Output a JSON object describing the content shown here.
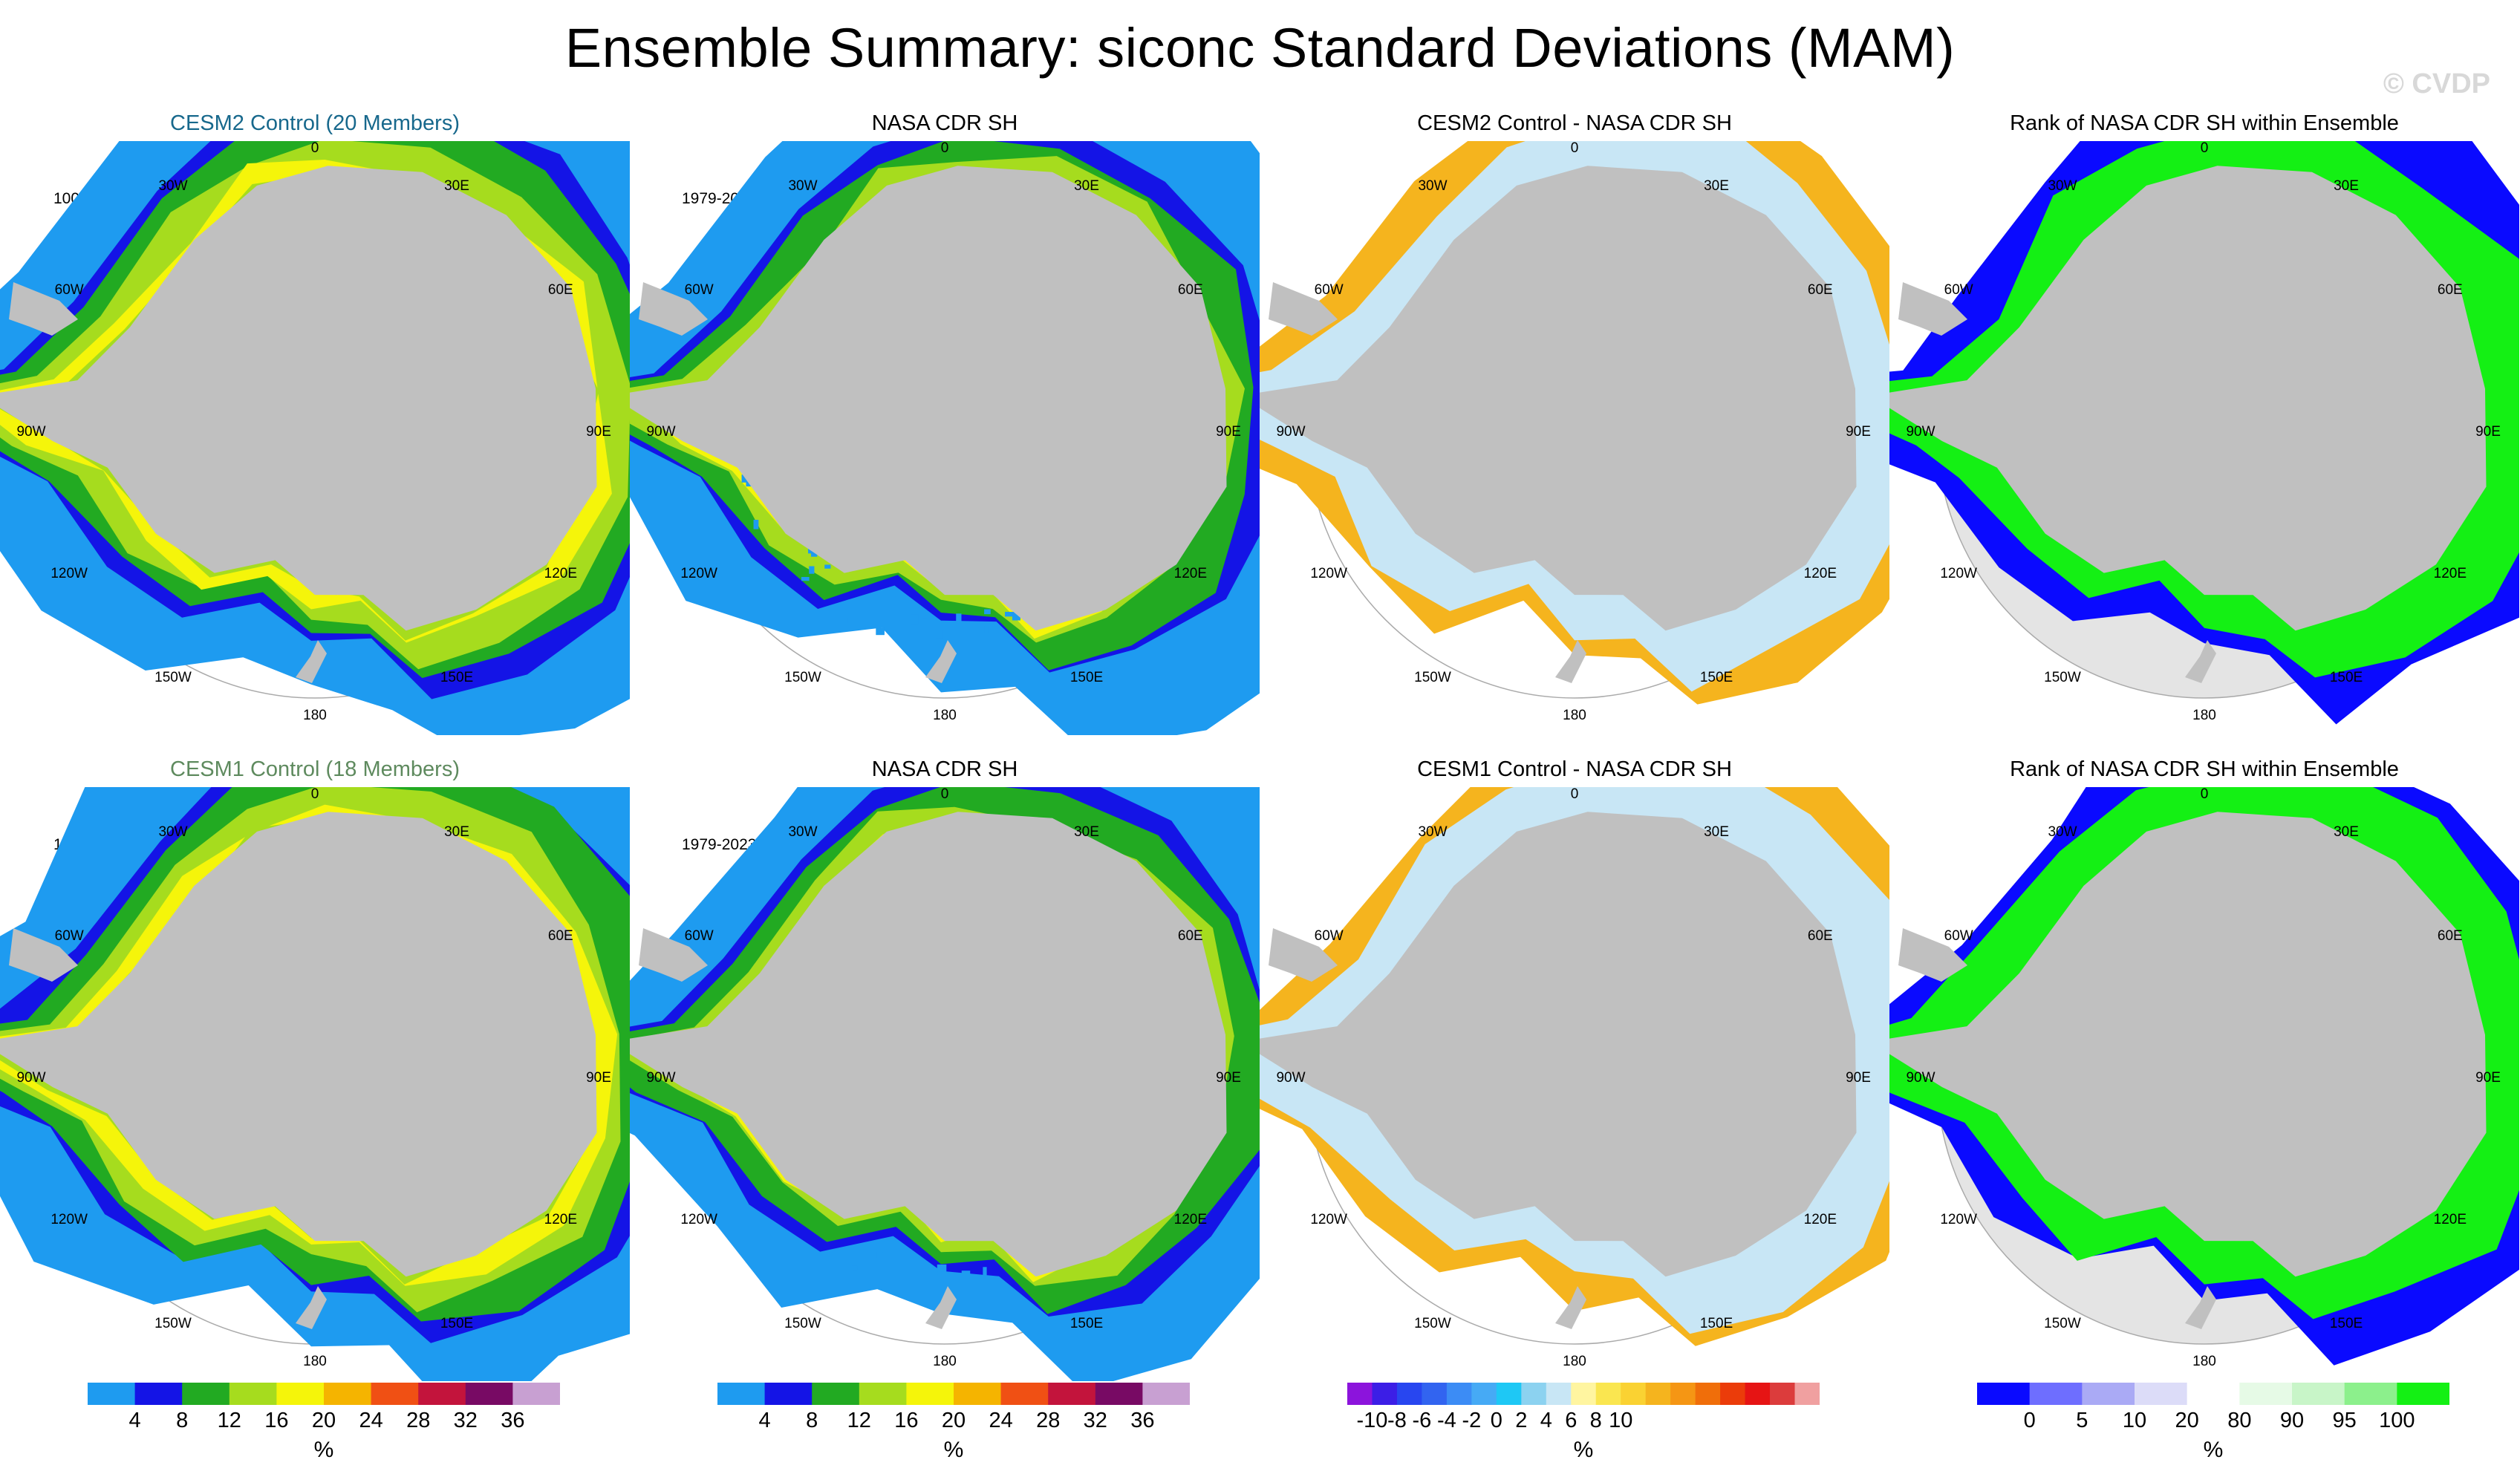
{
  "title": "Ensemble Summary: siconc Standard Deviations (MAM)",
  "watermark": "© CVDP",
  "longitude_labels": [
    "0",
    "30E",
    "60E",
    "90E",
    "120E",
    "150E",
    "180",
    "150W",
    "120W",
    "90W",
    "60W",
    "30W"
  ],
  "colors": {
    "land": "#c0c0c0",
    "ocean": "#ffffff",
    "rank_background": "#e4e4e4",
    "ring": "#aaaaaa",
    "cesm2_title": "#17688c",
    "cesm1_title": "#5e8a5e"
  },
  "rows": [
    {
      "panels": [
        {
          "title": "CESM2 Control (20 Members)",
          "period": "100yrs",
          "kind": "std"
        },
        {
          "title": "NASA CDR SH",
          "period": "1979-2023",
          "kind": "std"
        },
        {
          "title": "CESM2 Control - NASA CDR SH",
          "period": "",
          "kind": "diff"
        },
        {
          "title": "Rank of NASA CDR SH within Ensemble",
          "period": "",
          "kind": "rank"
        }
      ]
    },
    {
      "panels": [
        {
          "title": "CESM1 Control (18 Members)",
          "period": "100yrs",
          "kind": "std"
        },
        {
          "title": "NASA CDR SH",
          "period": "1979-2023",
          "kind": "std"
        },
        {
          "title": "CESM1 Control - NASA CDR SH",
          "period": "",
          "kind": "diff"
        },
        {
          "title": "Rank of NASA CDR SH within Ensemble",
          "period": "",
          "kind": "rank"
        }
      ]
    }
  ],
  "colorbars": [
    {
      "kind": "std",
      "colors": [
        "#1e9bf0",
        "#1414e6",
        "#22aa22",
        "#a6dc1e",
        "#f5f50a",
        "#f5b400",
        "#f05014",
        "#c3143c",
        "#780a64",
        "#c8a0d2"
      ],
      "tick_labels": [
        "4",
        "8",
        "12",
        "16",
        "20",
        "24",
        "28",
        "32",
        "36"
      ],
      "unit": "%"
    },
    {
      "kind": "std",
      "colors": [
        "#1e9bf0",
        "#1414e6",
        "#22aa22",
        "#a6dc1e",
        "#f5f50a",
        "#f5b400",
        "#f05014",
        "#c3143c",
        "#780a64",
        "#c8a0d2"
      ],
      "tick_labels": [
        "4",
        "8",
        "12",
        "16",
        "20",
        "24",
        "28",
        "32",
        "36"
      ],
      "unit": "%"
    },
    {
      "kind": "diff",
      "colors": [
        "#8c14dc",
        "#3c1ee6",
        "#2846f0",
        "#3264f0",
        "#3c8cf5",
        "#46aaf5",
        "#1ec8f5",
        "#8cd2f0",
        "#c8e6f5",
        "#fff5a0",
        "#fae650",
        "#fad232",
        "#f5b41e",
        "#f59614",
        "#f06e0a",
        "#eb3c0a",
        "#e61414",
        "#dc3c3c",
        "#f0a0a0"
      ],
      "tick_labels": [
        "-10",
        "-8",
        "-6",
        "-4",
        "-2",
        "0",
        "2",
        "4",
        "6",
        "8",
        "10"
      ],
      "unit": "%"
    },
    {
      "kind": "rank",
      "colors": [
        "#0a0aff",
        "#6e6eff",
        "#aaaaf5",
        "#dcdcf8",
        "#ffffff",
        "#e6fae6",
        "#c8f5c8",
        "#8cf08c",
        "#14f014"
      ],
      "tick_labels": [
        "0",
        "5",
        "10",
        "20",
        "80",
        "90",
        "95",
        "100"
      ],
      "unit": "%"
    }
  ]
}
